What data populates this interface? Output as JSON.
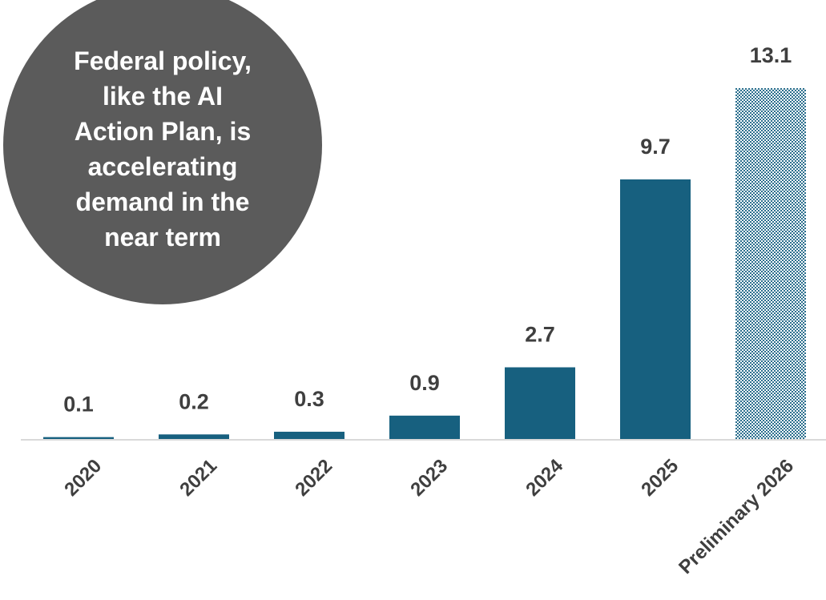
{
  "callout": {
    "text": "Federal policy, like the AI Action Plan, is accelerating demand in the near term"
  },
  "chart_data": {
    "type": "bar",
    "categories": [
      "2020",
      "2021",
      "2022",
      "2023",
      "2024",
      "2025",
      "Preliminary 2026"
    ],
    "values": [
      0.1,
      0.2,
      0.3,
      0.9,
      2.7,
      9.7,
      13.1
    ],
    "value_labels": [
      "0.1",
      "0.2",
      "0.3",
      "0.9",
      "2.7",
      "9.7",
      "13.1"
    ],
    "title": "",
    "xlabel": "",
    "ylabel": "",
    "ylim": [
      0,
      13.1
    ],
    "grid": false,
    "legend": "none",
    "colors": {
      "bar": "#17607f",
      "preliminary_pattern": "#2b6f8e",
      "axis": "#d9d9d9",
      "text": "#3f3f3f"
    }
  }
}
